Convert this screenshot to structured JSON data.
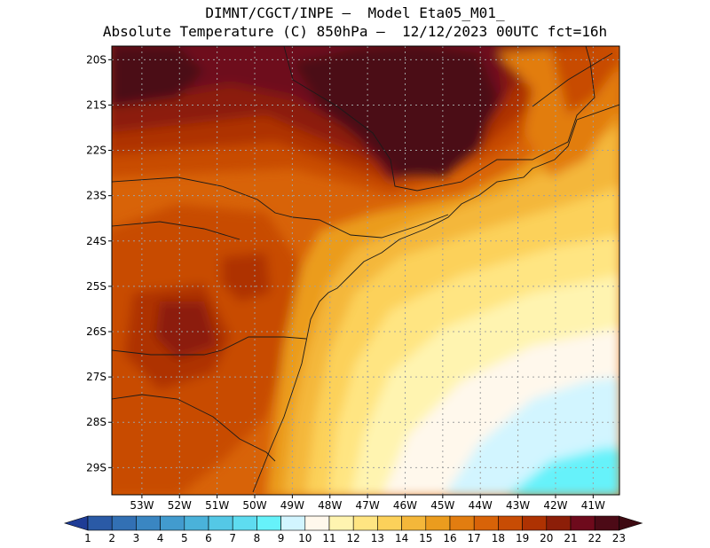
{
  "title": {
    "line1": "DIMNT/CGCT/INPE –  Model Eta05_M01_",
    "line2": "Absolute Temperature (C) 850hPa –  12/12/2023 00UTC fct=16h"
  },
  "map": {
    "lat_labels": [
      "20S",
      "21S",
      "22S",
      "23S",
      "24S",
      "25S",
      "26S",
      "27S",
      "28S",
      "29S"
    ],
    "lon_labels": [
      "53W",
      "52W",
      "51W",
      "50W",
      "49W",
      "48W",
      "47W",
      "46W",
      "45W",
      "44W",
      "43W",
      "42W",
      "41W"
    ],
    "lat_range": [
      -29.6,
      -19.7
    ],
    "lon_range": [
      -53.8,
      -40.3
    ],
    "variable": "Absolute Temperature (C) 850hPa"
  },
  "colorbar": {
    "labels": [
      "1",
      "2",
      "3",
      "4",
      "5",
      "6",
      "7",
      "8",
      "9",
      "10",
      "11",
      "12",
      "13",
      "14",
      "15",
      "16",
      "17",
      "18",
      "19",
      "20",
      "21",
      "22",
      "23"
    ],
    "colors": [
      "#1e3c96",
      "#2a5aa6",
      "#3270b4",
      "#3a86c2",
      "#429bce",
      "#4ab2da",
      "#54c8e6",
      "#5edcf0",
      "#66f2fa",
      "#d2f5ff",
      "#fff8ec",
      "#fff4b0",
      "#ffe582",
      "#fcd15a",
      "#f4b73a",
      "#eb9c1e",
      "#e27d10",
      "#d86308",
      "#c84c04",
      "#ae3202",
      "#8c1e08",
      "#6e0a1c",
      "#4c0a16",
      "#3e0a12"
    ]
  }
}
